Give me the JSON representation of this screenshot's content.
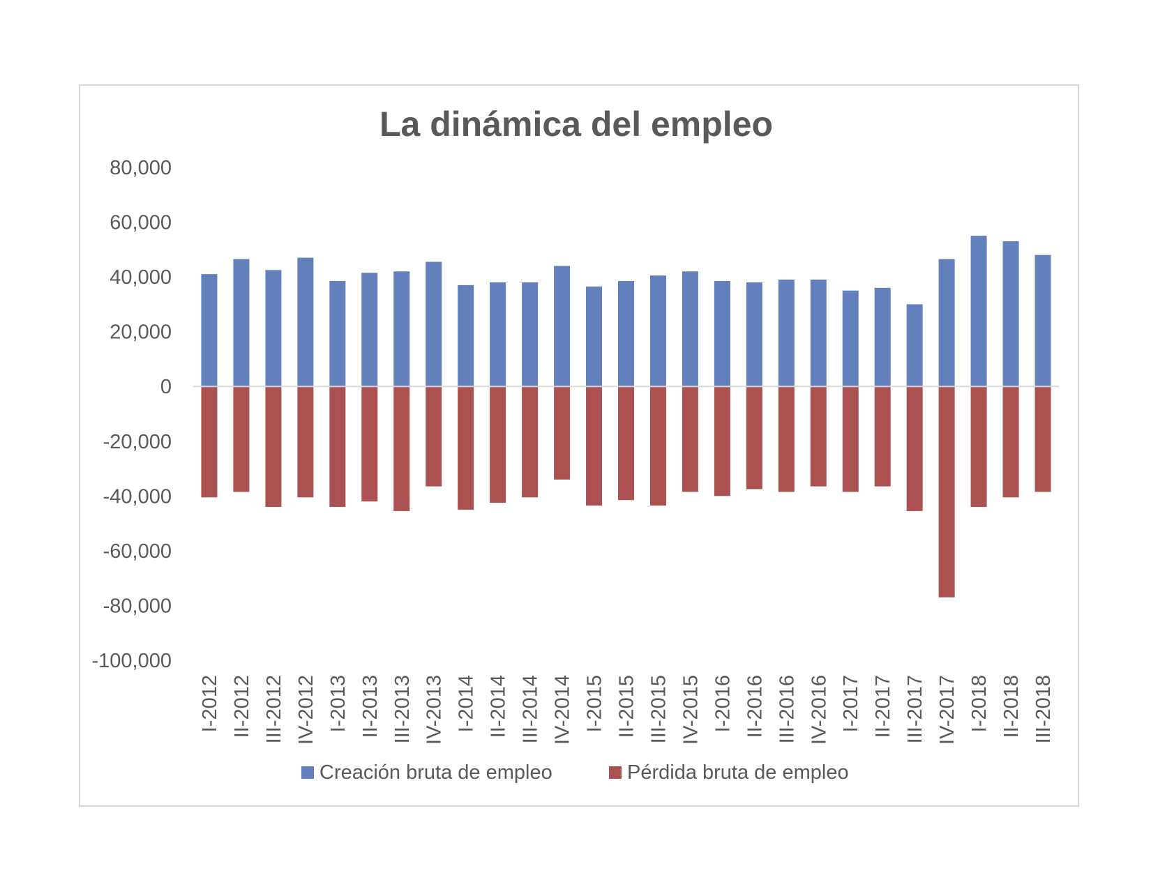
{
  "chart_data": {
    "type": "bar",
    "title": "La dinámica del empleo",
    "xlabel": "",
    "ylabel": "",
    "ylim": [
      -100000,
      80000
    ],
    "yticks": [
      80000,
      60000,
      40000,
      20000,
      0,
      -20000,
      -40000,
      -60000,
      -80000,
      -100000
    ],
    "ytick_labels": [
      "80,000",
      "60,000",
      "40,000",
      "20,000",
      "0",
      "-20,000",
      "-40,000",
      "-60,000",
      "-80,000",
      "-100,000"
    ],
    "grid": false,
    "legend_position": "bottom",
    "categories": [
      "I-2012",
      "II-2012",
      "III-2012",
      "IV-2012",
      "I-2013",
      "II-2013",
      "III-2013",
      "IV-2013",
      "I-2014",
      "II-2014",
      "III-2014",
      "IV-2014",
      "I-2015",
      "II-2015",
      "III-2015",
      "IV-2015",
      "I-2016",
      "II-2016",
      "III-2016",
      "IV-2016",
      "I-2017",
      "II-2017",
      "III-2017",
      "IV-2017",
      "I-2018",
      "II-2018",
      "III-2018"
    ],
    "series": [
      {
        "name": "Creación bruta de empleo",
        "color": "#6180bc",
        "values": [
          41000,
          46500,
          42500,
          47000,
          38500,
          41500,
          42000,
          45500,
          37000,
          38000,
          38000,
          44000,
          36500,
          38500,
          40500,
          42000,
          38500,
          38000,
          39000,
          39000,
          35000,
          36000,
          30000,
          46500,
          55000,
          53000,
          48000
        ]
      },
      {
        "name": "Pérdida bruta de empleo",
        "color": "#ab5151",
        "values": [
          -40500,
          -38500,
          -44000,
          -40500,
          -44000,
          -42000,
          -45500,
          -36500,
          -45000,
          -42500,
          -40500,
          -34000,
          -43500,
          -41500,
          -43500,
          -38500,
          -40000,
          -37500,
          -38500,
          -36500,
          -38500,
          -36500,
          -45500,
          -77000,
          -44000,
          -40500,
          -38500
        ]
      }
    ]
  }
}
